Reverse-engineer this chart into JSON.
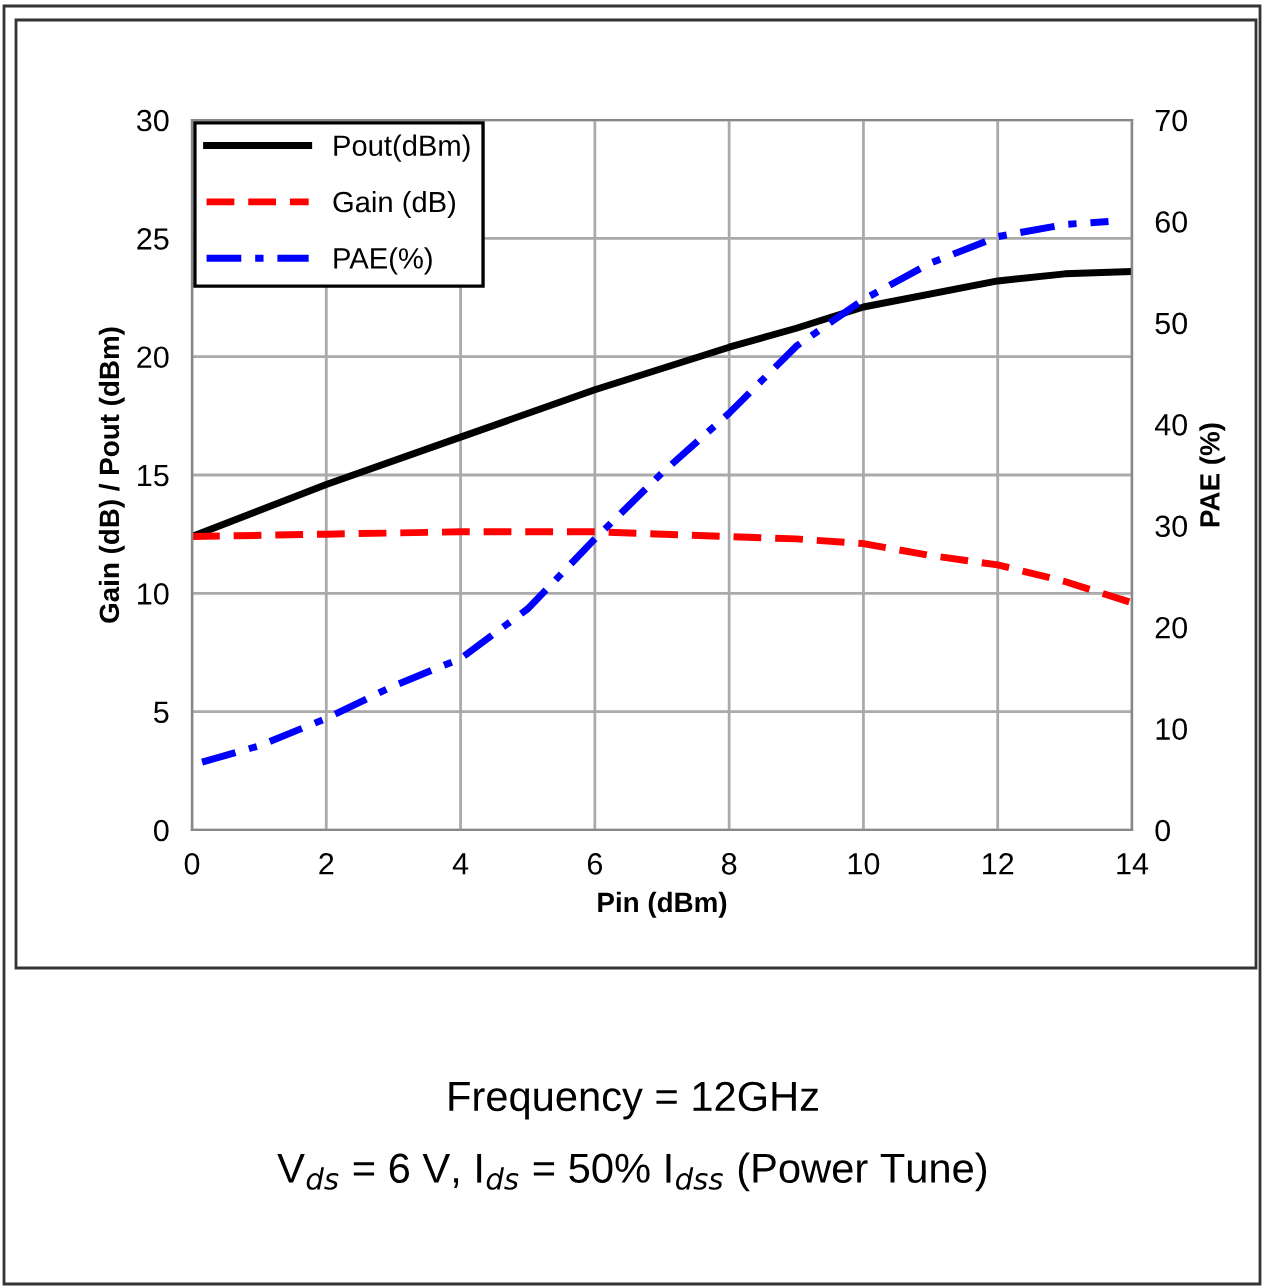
{
  "chart_data": {
    "type": "line",
    "xlabel": "Pin (dBm)",
    "ylabel": "Gain (dB) / Pout (dBm)",
    "y2label": "PAE (%)",
    "xlim": [
      0,
      14
    ],
    "xticks": [
      0,
      2,
      4,
      6,
      8,
      10,
      12,
      14
    ],
    "ylim": [
      0,
      30
    ],
    "yticks": [
      0,
      5,
      10,
      15,
      20,
      25,
      30
    ],
    "y2lim": [
      0,
      70
    ],
    "y2ticks": [
      0,
      10,
      20,
      30,
      40,
      50,
      60,
      70
    ],
    "grid": true,
    "legend": "top left",
    "series": [
      {
        "name": "Pout(dBm)",
        "color": "#000000",
        "line_style": "solid",
        "x": [
          0,
          2,
          4,
          6,
          8,
          9,
          10,
          12,
          13,
          14
        ],
        "values": [
          12.4,
          14.6,
          16.6,
          18.6,
          20.4,
          21.2,
          22.1,
          23.2,
          23.5,
          23.6
        ]
      },
      {
        "name": "Gain (dB)",
        "color": "#ff0000",
        "line_style": "dashed",
        "x": [
          0,
          2,
          4,
          6,
          8,
          9,
          10,
          11,
          12,
          13,
          14
        ],
        "values": [
          12.4,
          12.5,
          12.6,
          12.6,
          12.4,
          12.3,
          12.1,
          11.6,
          11.2,
          10.5,
          9.6
        ]
      },
      {
        "name": "PAE(%)",
        "color": "#0000ff",
        "line_style": "dashdot",
        "axis": "y2",
        "x": [
          0.15,
          1,
          2,
          3,
          4,
          5,
          6,
          7,
          8,
          9,
          10,
          11,
          12,
          13,
          13.65
        ],
        "values": [
          6.7,
          8.3,
          11.0,
          14.2,
          16.9,
          21.8,
          28.7,
          35.2,
          41.1,
          47.7,
          52.3,
          55.9,
          58.5,
          59.7,
          60.0
        ]
      }
    ],
    "annotations": [
      "Frequency = 12GHz",
      "V$_{ds}$ = 6 V, I$_{ds}$ = 50% I$_{dss}$ (Power Tune)"
    ]
  }
}
